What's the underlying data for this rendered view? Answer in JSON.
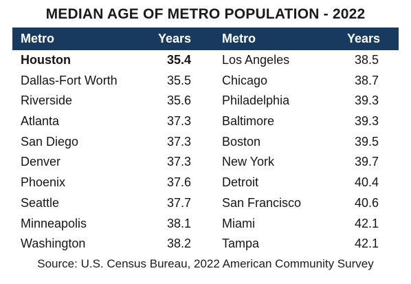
{
  "title": "MEDIAN AGE OF METRO POPULATION - 2022",
  "table": {
    "headers": {
      "metro_left": "Metro",
      "years_left": "Years",
      "metro_right": "Metro",
      "years_right": "Years"
    },
    "rows": [
      {
        "metro_left": "Houston",
        "years_left": "35.4",
        "metro_right": "Los Angeles",
        "years_right": "38.5"
      },
      {
        "metro_left": "Dallas-Fort Worth",
        "years_left": "35.5",
        "metro_right": "Chicago",
        "years_right": "38.7"
      },
      {
        "metro_left": "Riverside",
        "years_left": "35.6",
        "metro_right": "Philadelphia",
        "years_right": "39.3"
      },
      {
        "metro_left": "Atlanta",
        "years_left": "37.3",
        "metro_right": "Baltimore",
        "years_right": "39.3"
      },
      {
        "metro_left": "San Diego",
        "years_left": "37.3",
        "metro_right": "Boston",
        "years_right": "39.5"
      },
      {
        "metro_left": "Denver",
        "years_left": "37.3",
        "metro_right": "New York",
        "years_right": "39.7"
      },
      {
        "metro_left": "Phoenix",
        "years_left": "37.6",
        "metro_right": "Detroit",
        "years_right": "40.4"
      },
      {
        "metro_left": "Seattle",
        "years_left": "37.7",
        "metro_right": "San Francisco",
        "years_right": "40.6"
      },
      {
        "metro_left": "Minneapolis",
        "years_left": "38.1",
        "metro_right": "Miami",
        "years_right": "42.1"
      },
      {
        "metro_left": "Washington",
        "years_left": "38.2",
        "metro_right": "Tampa",
        "years_right": "42.1"
      }
    ]
  },
  "source": "Source: U.S. Census Bureau, 2022 American Community Survey",
  "colors": {
    "header_background": "#173a5e",
    "header_text": "#ffffff"
  }
}
